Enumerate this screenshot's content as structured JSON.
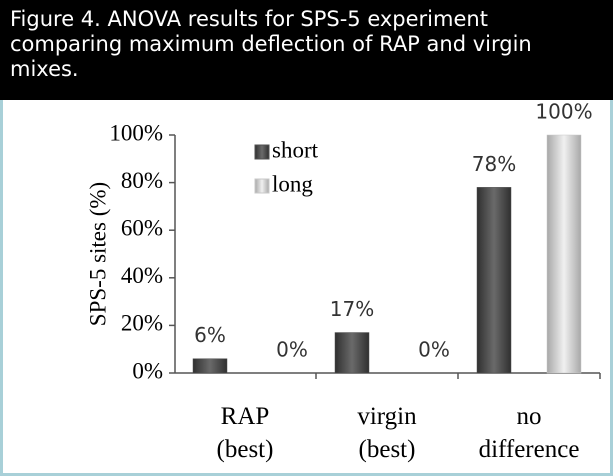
{
  "chart_data": {
    "type": "bar",
    "title": "Figure 4. ANOVA results for SPS-5 experiment comparing maximum deflection of RAP and virgin mixes.",
    "ylabel": "SPS-5 sites (%)",
    "categories": [
      "RAP (best)",
      "virgin (best)",
      "no difference"
    ],
    "series": [
      {
        "name": "short",
        "color": "#505050",
        "values": [
          6,
          17,
          78
        ],
        "value_labels": [
          "6%",
          "17%",
          "78%"
        ]
      },
      {
        "name": "long",
        "color": "#c8c8c8",
        "values": [
          0,
          0,
          100
        ],
        "value_labels": [
          "0%",
          "0%",
          "100%"
        ]
      }
    ],
    "ylim": [
      0,
      100
    ],
    "yticks": [
      {
        "value": 0,
        "label": "0%"
      },
      {
        "value": 20,
        "label": "20%"
      },
      {
        "value": 40,
        "label": "40%"
      },
      {
        "value": 60,
        "label": "60%"
      },
      {
        "value": 80,
        "label": "80%"
      },
      {
        "value": 100,
        "label": "100%"
      }
    ],
    "legend": "upper left"
  }
}
